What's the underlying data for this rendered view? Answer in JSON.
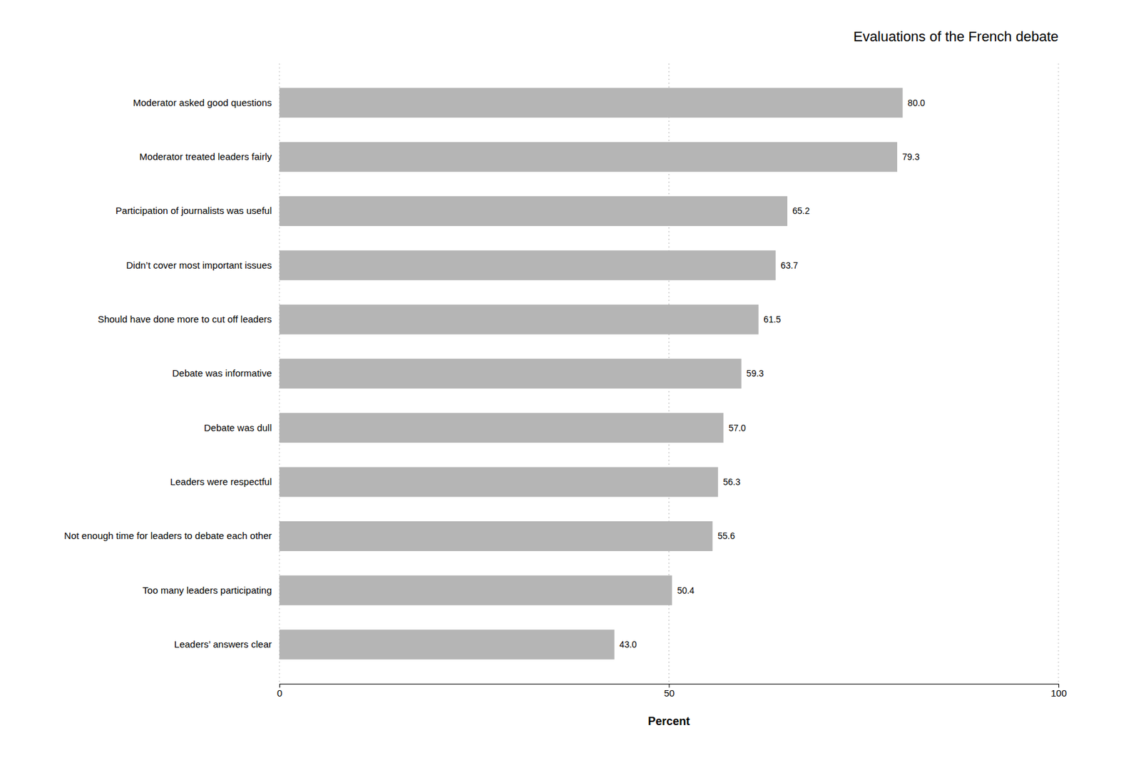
{
  "chart_data": {
    "type": "bar",
    "orientation": "horizontal",
    "title": "Evaluations of the French debate",
    "categories": [
      "Leaders’ answers clear",
      "Too many leaders participating",
      "Not enough time for leaders to debate each other",
      "Leaders were respectful",
      "Debate was dull",
      "Debate was informative",
      "Should have done more to cut off leaders",
      "Didn’t cover most important issues",
      "Participation of journalists was useful",
      "Moderator treated leaders fairly",
      "Moderator asked good questions"
    ],
    "values": [
      43.0,
      50.4,
      55.6,
      56.3,
      57.0,
      59.3,
      61.5,
      63.7,
      65.2,
      79.3,
      80.0
    ],
    "value_labels": [
      "43.0",
      "50.4",
      "55.6",
      "56.3",
      "57.0",
      "59.3",
      "61.5",
      "63.7",
      "65.2",
      "79.3",
      "80.0"
    ],
    "data_labels": true,
    "color": "#b5b5b5",
    "xlim": [
      0,
      100
    ],
    "xticks": [
      0,
      50,
      100
    ],
    "xlabel": "Percent",
    "grid": true
  }
}
